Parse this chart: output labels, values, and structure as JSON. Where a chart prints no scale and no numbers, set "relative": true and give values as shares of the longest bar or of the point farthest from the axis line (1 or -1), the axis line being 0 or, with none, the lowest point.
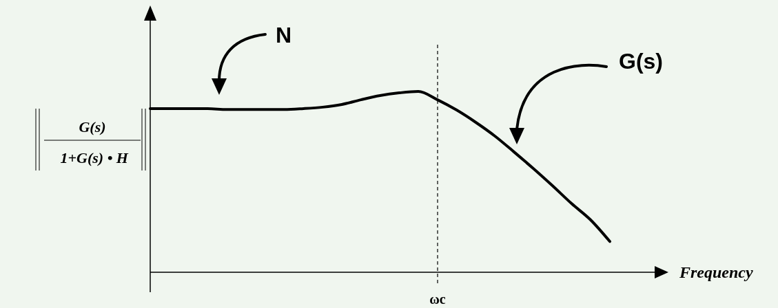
{
  "chart_data": {
    "type": "line",
    "relative": true,
    "xlabel": "Frequency",
    "ylabel": "G(s) 1+G(s) • H",
    "categories": [
      null,
      null,
      null,
      null,
      null,
      null,
      null,
      null,
      null,
      null,
      null,
      null,
      null,
      null,
      null,
      null,
      null,
      null,
      null,
      null,
      null,
      null,
      null,
      null,
      null
    ],
    "values": [
      0.905,
      0.905,
      0.905,
      0.905,
      0.9,
      0.9,
      0.9,
      0.9,
      0.905,
      0.913,
      0.928,
      0.954,
      0.977,
      0.992,
      1,
      0.954,
      0.897,
      0.829,
      0.753,
      0.665,
      0.574,
      0.479,
      0.38,
      0.289,
      0.17
    ],
    "color": "#000000",
    "line_style": "solid",
    "annotations": [
      "N",
      "G(s)",
      "ωc"
    ]
  }
}
